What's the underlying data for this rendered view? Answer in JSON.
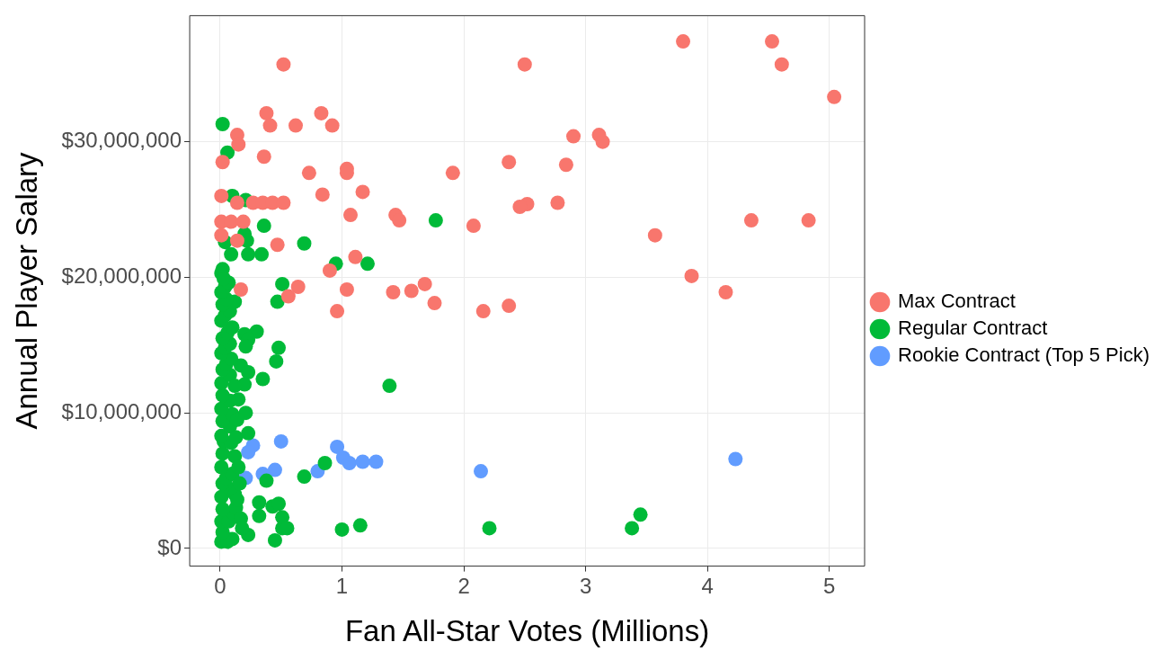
{
  "chart_data": {
    "type": "scatter",
    "xlabel": "Fan All-Star Votes (Millions)",
    "ylabel": "Annual Player Salary",
    "xlim": [
      -0.25,
      5.29
    ],
    "xticks": [
      0,
      1,
      2,
      3,
      4,
      5
    ],
    "ylim": [
      -1300000,
      39300000
    ],
    "yticks": [
      {
        "value": 0,
        "label": "$0"
      },
      {
        "value": 10000000,
        "label": "$10,000,000"
      },
      {
        "value": 20000000,
        "label": "$20,000,000"
      },
      {
        "value": 30000000,
        "label": "$30,000,000"
      }
    ],
    "grid": true,
    "legend": "right",
    "marker": "circle",
    "series": [
      {
        "name": "Max Contract",
        "color": "#f8766d",
        "x": [
          3.8,
          4.53,
          4.61,
          5.04,
          0.52,
          2.5,
          0.38,
          0.83,
          0.41,
          0.62,
          0.92,
          0.14,
          0.15,
          0.02,
          0.36,
          2.9,
          3.11,
          3.14,
          2.37,
          2.84,
          0.73,
          1.04,
          1.04,
          1.91,
          0.84,
          1.17,
          0.01,
          0.14,
          0.27,
          0.35,
          0.43,
          0.52,
          2.77,
          2.52,
          2.46,
          1.07,
          1.44,
          1.47,
          2.08,
          4.36,
          4.83,
          0.01,
          0.09,
          0.19,
          3.57,
          0.01,
          0.14,
          0.47,
          1.11,
          3.87,
          4.15,
          0.9,
          0.64,
          0.56,
          1.04,
          0.17,
          1.42,
          1.57,
          1.68,
          1.76,
          0.96,
          2.16,
          2.37
        ],
        "values": [
          37400000,
          37400000,
          35700000,
          33300000,
          35700000,
          35700000,
          32100000,
          32100000,
          31200000,
          31200000,
          31200000,
          30500000,
          29800000,
          28500000,
          28900000,
          30400000,
          30500000,
          30000000,
          28500000,
          28300000,
          27700000,
          28000000,
          27700000,
          27700000,
          26100000,
          26300000,
          26000000,
          25500000,
          25500000,
          25500000,
          25500000,
          25500000,
          25500000,
          25400000,
          25200000,
          24600000,
          24600000,
          24200000,
          23800000,
          24200000,
          24200000,
          24100000,
          24100000,
          24100000,
          23100000,
          23100000,
          22700000,
          22400000,
          21500000,
          20100000,
          18900000,
          20500000,
          19300000,
          18600000,
          19100000,
          19100000,
          18900000,
          19000000,
          19500000,
          18100000,
          17500000,
          17500000,
          17900000
        ]
      },
      {
        "name": "Regular Contract",
        "color": "#00ba38",
        "x": [
          0.02,
          0.06,
          0.1,
          0.21,
          0.04,
          0.36,
          0.2,
          0.22,
          0.69,
          1.77,
          0.09,
          0.23,
          0.34,
          0.95,
          1.21,
          0.02,
          0.51,
          0.47,
          0.12,
          0.3,
          0.48,
          0.46,
          0.35,
          1.39,
          0.2,
          0.23,
          0.21,
          0.17,
          0.23,
          0.2,
          0.21,
          0.23,
          0.86,
          0.69,
          0.38,
          0.43,
          0.48,
          0.32,
          0.51,
          0.51,
          0.55,
          0.32,
          1.0,
          1.15,
          2.21,
          3.38,
          3.45,
          0.45,
          0.23,
          0.01,
          0.06,
          0.1,
          0.02,
          0.01,
          0.07,
          0.11,
          0.02,
          0.13,
          0.01,
          0.08,
          0.12,
          0.02,
          0.05,
          0.1,
          0.01,
          0.12,
          0.02,
          0.03,
          0.09,
          0.01,
          0.08,
          0.02,
          0.1,
          0.01,
          0.08,
          0.02,
          0.01,
          0.08,
          0.02,
          0.05,
          0.09,
          0.01,
          0.04,
          0.08,
          0.02,
          0.06,
          0.1,
          0.01,
          0.04,
          0.08,
          0.02,
          0.05,
          0.01,
          0.04,
          0.07,
          0.01,
          0.03,
          0.12,
          0.15,
          0.14,
          0.13,
          0.15,
          0.16,
          0.14,
          0.17,
          0.18
        ],
        "values": [
          31300000,
          29200000,
          26000000,
          25700000,
          22600000,
          23800000,
          23200000,
          22700000,
          22500000,
          24200000,
          21700000,
          21700000,
          21700000,
          21000000,
          21000000,
          20600000,
          19500000,
          18200000,
          18200000,
          16000000,
          14800000,
          13800000,
          12500000,
          12000000,
          15800000,
          15400000,
          14900000,
          13500000,
          13000000,
          12100000,
          10000000,
          8500000,
          6300000,
          5300000,
          5000000,
          3100000,
          3300000,
          3400000,
          2300000,
          1500000,
          1500000,
          2400000,
          1400000,
          1700000,
          1500000,
          1500000,
          2500000,
          600000,
          1000000,
          500000,
          500000,
          700000,
          1200000,
          2000000,
          2000000,
          2600000,
          2900000,
          3000000,
          3800000,
          4400000,
          4000000,
          4800000,
          5200000,
          5500000,
          6000000,
          6800000,
          7000000,
          7900000,
          7800000,
          8300000,
          9000000,
          9400000,
          9900000,
          10300000,
          10900000,
          11300000,
          12200000,
          12800000,
          13200000,
          13600000,
          14000000,
          14400000,
          14800000,
          15100000,
          15500000,
          15900000,
          16300000,
          16800000,
          17200000,
          17500000,
          18000000,
          18400000,
          18900000,
          19300000,
          19600000,
          20300000,
          19900000,
          12000000,
          11000000,
          9500000,
          8200000,
          6000000,
          4800000,
          3600000,
          2200000,
          1500000
        ]
      },
      {
        "name": "Rookie Contract (Top 5 Pick)",
        "color": "#619cff",
        "x": [
          0.5,
          0.96,
          1.01,
          1.06,
          1.17,
          1.28,
          0.8,
          2.14,
          4.23,
          0.27,
          0.23,
          0.45,
          0.35,
          0.21
        ],
        "values": [
          7900000,
          7500000,
          6700000,
          6300000,
          6400000,
          6400000,
          5700000,
          5700000,
          6600000,
          7600000,
          7100000,
          5800000,
          5500000,
          5200000
        ]
      }
    ]
  }
}
